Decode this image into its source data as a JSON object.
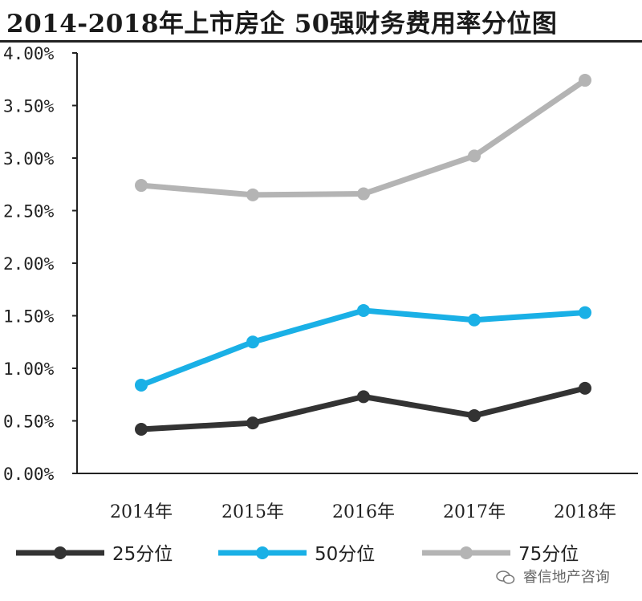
{
  "chart_data": {
    "type": "line",
    "title": "2014-2018年上市房企 50强财务费用率分位图",
    "categories": [
      "2014年",
      "2015年",
      "2016年",
      "2017年",
      "2018年"
    ],
    "ylim": [
      0,
      4
    ],
    "yticks": [
      "0.00%",
      "0.50%",
      "1.00%",
      "1.50%",
      "2.00%",
      "2.50%",
      "3.00%",
      "3.50%",
      "4.00%"
    ],
    "grid": false,
    "legend_position": "bottom",
    "series": [
      {
        "name": "25分位",
        "color": "#333333",
        "values": [
          0.42,
          0.48,
          0.73,
          0.55,
          0.81
        ]
      },
      {
        "name": "50分位",
        "color": "#1ab0e6",
        "values": [
          0.84,
          1.25,
          1.55,
          1.46,
          1.53
        ]
      },
      {
        "name": "75分位",
        "color": "#b4b4b4",
        "values": [
          2.74,
          2.65,
          2.66,
          3.02,
          3.74
        ]
      }
    ]
  },
  "watermark": "睿信地产咨询"
}
